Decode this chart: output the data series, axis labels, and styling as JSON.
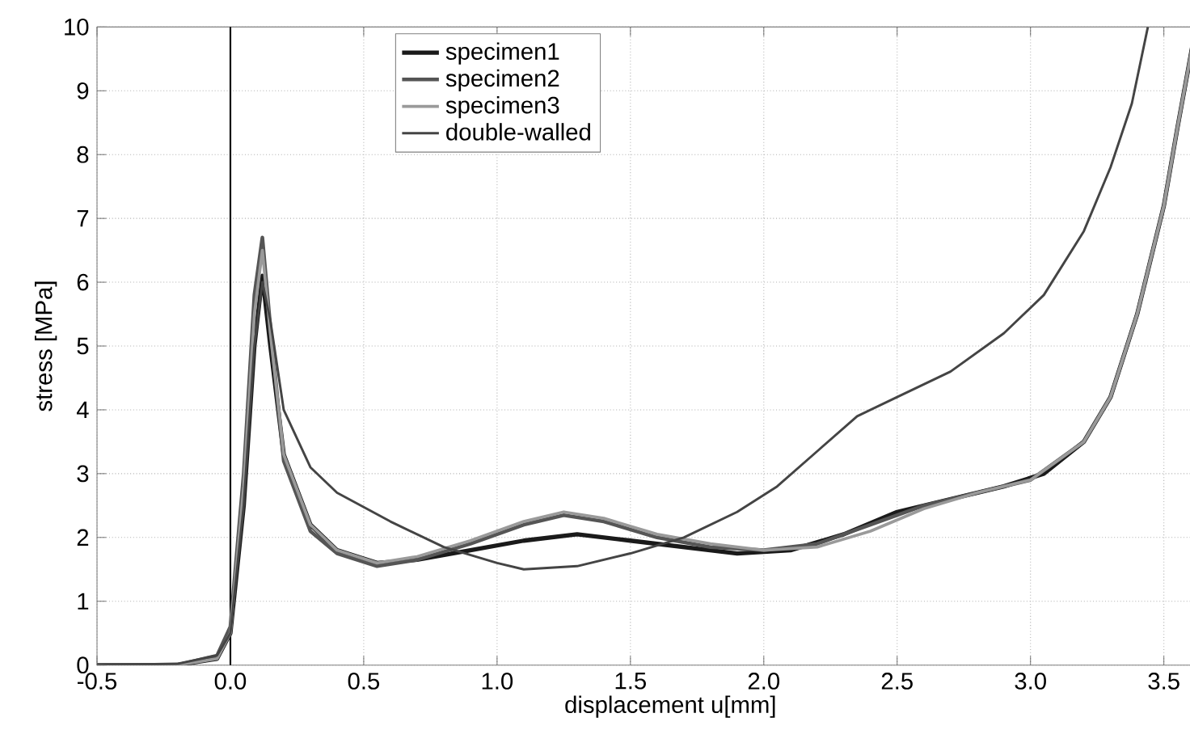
{
  "chart_data": {
    "type": "line",
    "xlabel": "displacement u[mm]",
    "ylabel": "stress [MPa]",
    "xlim": [
      -0.5,
      3.8
    ],
    "ylim": [
      0,
      10
    ],
    "xticks": [
      {
        "value": -0.5,
        "label": "-0.5"
      },
      {
        "value": 0,
        "label": "0.0"
      },
      {
        "value": 0.5,
        "label": "0.5"
      },
      {
        "value": 1,
        "label": "1.0"
      },
      {
        "value": 1.5,
        "label": "1.5"
      },
      {
        "value": 2,
        "label": "2.0"
      },
      {
        "value": 2.5,
        "label": "2.5"
      },
      {
        "value": 3,
        "label": "3.0"
      },
      {
        "value": 3.5,
        "label": "3.5"
      }
    ],
    "yticks": [
      0,
      1,
      2,
      3,
      4,
      5,
      6,
      7,
      8,
      9,
      10
    ],
    "grid": true,
    "legend": "top left",
    "marker": "none",
    "line_style": "solid",
    "ref_lines": [
      {
        "axis": "x",
        "value": 0,
        "color": "#000000"
      }
    ],
    "series": [
      {
        "name": "specimen1",
        "color": "#1a1a1a",
        "x": [
          -0.5,
          -0.2,
          -0.05,
          0,
          0.05,
          0.09,
          0.12,
          0.15,
          0.2,
          0.3,
          0.4,
          0.55,
          0.7,
          0.9,
          1.1,
          1.3,
          1.5,
          1.7,
          1.9,
          2.1,
          2.3,
          2.5,
          2.7,
          2.9,
          3.05,
          3.2,
          3.3,
          3.4,
          3.5,
          3.55,
          3.62
        ],
        "values": [
          0,
          0,
          0.1,
          0.5,
          2.5,
          5.0,
          6.1,
          5.0,
          3.3,
          2.2,
          1.8,
          1.6,
          1.65,
          1.8,
          1.95,
          2.05,
          1.95,
          1.85,
          1.75,
          1.8,
          2.05,
          2.4,
          2.6,
          2.8,
          3.0,
          3.5,
          4.2,
          5.5,
          7.2,
          8.4,
          10
        ]
      },
      {
        "name": "specimen2",
        "color": "#555555",
        "x": [
          -0.5,
          -0.2,
          -0.05,
          0,
          0.05,
          0.09,
          0.12,
          0.15,
          0.2,
          0.3,
          0.4,
          0.55,
          0.7,
          0.9,
          1.1,
          1.25,
          1.4,
          1.6,
          1.8,
          2.0,
          2.2,
          2.4,
          2.6,
          2.8,
          3.0,
          3.2,
          3.3,
          3.4,
          3.5,
          3.55,
          3.62
        ],
        "values": [
          0,
          0,
          0.15,
          0.6,
          3.0,
          5.8,
          6.7,
          5.3,
          3.2,
          2.1,
          1.75,
          1.55,
          1.65,
          1.9,
          2.2,
          2.35,
          2.25,
          2.0,
          1.85,
          1.8,
          1.9,
          2.2,
          2.5,
          2.7,
          2.9,
          3.5,
          4.2,
          5.5,
          7.2,
          8.4,
          10
        ]
      },
      {
        "name": "specimen3",
        "color": "#9a9a9a",
        "x": [
          -0.5,
          -0.2,
          -0.05,
          0,
          0.05,
          0.09,
          0.12,
          0.15,
          0.2,
          0.3,
          0.4,
          0.55,
          0.7,
          0.9,
          1.1,
          1.25,
          1.4,
          1.6,
          1.8,
          2.0,
          2.2,
          2.4,
          2.6,
          2.8,
          3.0,
          3.2,
          3.3,
          3.4,
          3.5,
          3.55,
          3.62
        ],
        "values": [
          0,
          0,
          0.1,
          0.5,
          2.8,
          5.5,
          6.5,
          5.2,
          3.3,
          2.2,
          1.8,
          1.6,
          1.7,
          1.95,
          2.25,
          2.4,
          2.3,
          2.05,
          1.9,
          1.8,
          1.85,
          2.1,
          2.45,
          2.7,
          2.9,
          3.5,
          4.2,
          5.5,
          7.2,
          8.4,
          10
        ]
      },
      {
        "name": "double-walled",
        "color": "#444444",
        "x": [
          -0.5,
          -0.2,
          -0.05,
          0,
          0.05,
          0.09,
          0.12,
          0.15,
          0.2,
          0.3,
          0.4,
          0.6,
          0.8,
          1.0,
          1.1,
          1.3,
          1.5,
          1.7,
          1.9,
          2.05,
          2.2,
          2.35,
          2.5,
          2.7,
          2.9,
          3.05,
          3.2,
          3.3,
          3.38,
          3.44
        ],
        "values": [
          0,
          0.02,
          0.15,
          0.5,
          2.5,
          5.0,
          6.0,
          5.4,
          4.0,
          3.1,
          2.7,
          2.25,
          1.85,
          1.6,
          1.5,
          1.55,
          1.75,
          2.0,
          2.4,
          2.8,
          3.35,
          3.9,
          4.2,
          4.6,
          5.2,
          5.8,
          6.8,
          7.8,
          8.8,
          10
        ]
      }
    ]
  }
}
